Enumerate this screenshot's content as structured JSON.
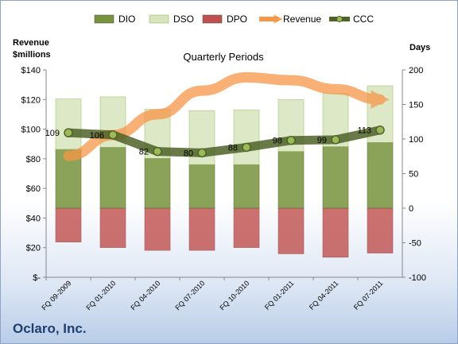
{
  "chart_data": {
    "type": "bar",
    "title": "Quarterly Periods",
    "company": "Oclaro, Inc.",
    "left_axis": {
      "title_lines": [
        "Revenue",
        "$millions"
      ],
      "ylim": [
        0,
        140
      ],
      "ticks": [
        0,
        20,
        40,
        60,
        80,
        100,
        120,
        140
      ],
      "tick_labels": [
        "$-",
        "$20",
        "$40",
        "$60",
        "$80",
        "$100",
        "$120",
        "$140"
      ]
    },
    "right_axis": {
      "title": "Days",
      "ylim": [
        -100,
        200
      ],
      "ticks": [
        -100,
        -50,
        0,
        50,
        100,
        150,
        200
      ],
      "tick_labels": [
        "-100",
        "-50",
        "0",
        "50",
        "100",
        "150",
        "200"
      ]
    },
    "categories": [
      "FQ 09-2009",
      "FQ 01-2010",
      "FQ 04-2010",
      "FQ 07-2010",
      "FQ 10-2010",
      "FQ 01-2011",
      "FQ 04-2011",
      "FQ 07-2011"
    ],
    "series": [
      {
        "name": "DIO",
        "type": "bar",
        "axis": "right",
        "color": "#77933c",
        "values": [
          85,
          88,
          72,
          63,
          63,
          82,
          89,
          95
        ]
      },
      {
        "name": "DSO",
        "type": "bar",
        "axis": "right",
        "color": "#d7e4bd",
        "values": [
          73,
          73,
          71,
          78,
          79,
          75,
          77,
          82
        ]
      },
      {
        "name": "DPO",
        "type": "bar",
        "axis": "right",
        "color": "#c0504d",
        "values": [
          -49,
          -57,
          -61,
          -61,
          -57,
          -66,
          -71,
          -65
        ]
      },
      {
        "name": "Revenue",
        "type": "line",
        "axis": "left",
        "color": "#f79646",
        "values": [
          82,
          96,
          110,
          126,
          135,
          133,
          127,
          120
        ]
      },
      {
        "name": "CCC",
        "type": "line",
        "axis": "right",
        "color": "#4f6228",
        "values": [
          109,
          106,
          82,
          80,
          88,
          98,
          99,
          113
        ],
        "labels": [
          "109",
          "106",
          "82",
          "80",
          "88",
          "98",
          "99",
          "113"
        ]
      }
    ],
    "legend": [
      "DIO",
      "DSO",
      "DPO",
      "Revenue",
      "CCC"
    ],
    "legend_position": "top",
    "grid": false
  }
}
